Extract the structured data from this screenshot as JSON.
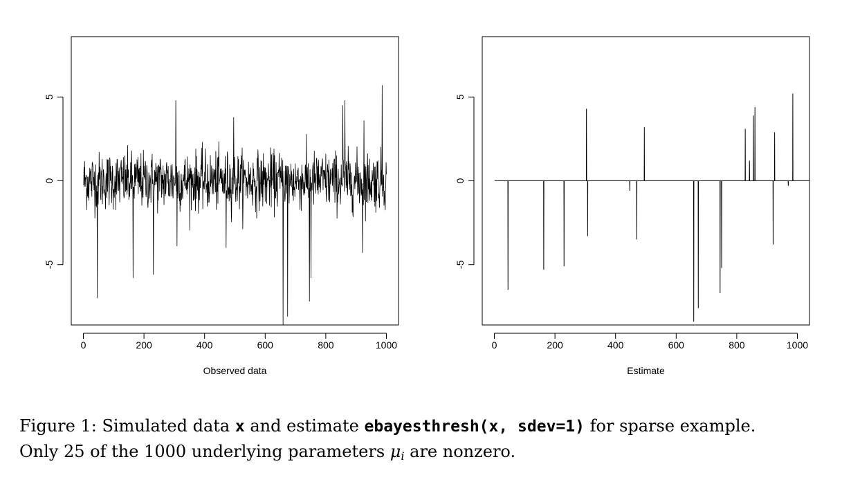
{
  "chart_data": [
    {
      "type": "line",
      "xlabel": "Observed data",
      "ylabel": "",
      "xlim": [
        -40,
        1040
      ],
      "ylim": [
        -8.6,
        8.6
      ],
      "xticks": [
        0,
        200,
        400,
        600,
        800,
        1000
      ],
      "yticks": [
        -5,
        0,
        5
      ],
      "xtick_labels": [
        "0",
        "200",
        "400",
        "600",
        "800",
        "1000"
      ],
      "ytick_labels": [
        "-5",
        "0",
        "5"
      ],
      "n": 1000,
      "noise_sd": 1,
      "spikes": [
        {
          "x": 45,
          "y": -7.0
        },
        {
          "x": 163,
          "y": -5.8
        },
        {
          "x": 230,
          "y": -5.6
        },
        {
          "x": 304,
          "y": 4.8
        },
        {
          "x": 308,
          "y": -3.9
        },
        {
          "x": 470,
          "y": -4.0
        },
        {
          "x": 495,
          "y": 3.8
        },
        {
          "x": 658,
          "y": -8.6
        },
        {
          "x": 673,
          "y": -8.1
        },
        {
          "x": 745,
          "y": -7.2
        },
        {
          "x": 750,
          "y": -5.8
        },
        {
          "x": 855,
          "y": 4.5
        },
        {
          "x": 862,
          "y": 4.8
        },
        {
          "x": 920,
          "y": -4.3
        },
        {
          "x": 925,
          "y": 3.6
        },
        {
          "x": 985,
          "y": 5.7
        }
      ]
    },
    {
      "type": "line",
      "xlabel": "Estimate",
      "ylabel": "",
      "xlim": [
        -40,
        1040
      ],
      "ylim": [
        -8.6,
        8.6
      ],
      "xticks": [
        0,
        200,
        400,
        600,
        800,
        1000
      ],
      "yticks": [
        -5,
        0,
        5
      ],
      "xtick_labels": [
        "0",
        "200",
        "400",
        "600",
        "800",
        "1000"
      ],
      "ytick_labels": [
        "-5",
        "0",
        "5"
      ],
      "x": [
        45,
        163,
        230,
        304,
        308,
        447,
        470,
        495,
        658,
        673,
        745,
        750,
        828,
        842,
        855,
        860,
        920,
        925,
        970,
        985
      ],
      "y": [
        -6.5,
        -5.3,
        -5.1,
        4.3,
        -3.3,
        -0.6,
        -3.5,
        3.2,
        -8.4,
        -7.6,
        -6.7,
        -5.2,
        3.1,
        1.2,
        3.9,
        4.4,
        -3.8,
        2.9,
        -0.3,
        5.2
      ]
    }
  ],
  "caption": {
    "prefix": "Figure 1:  Simulated data ",
    "code_x": "x",
    "middle": " and estimate ",
    "code_call": "ebayesthresh(x, sdev=1)",
    "suffix": " for sparse example.",
    "line2_prefix": "Only 25 of the 1000 underlying parameters ",
    "mu": "μ",
    "sub_i": "i",
    "line2_suffix": " are nonzero."
  }
}
